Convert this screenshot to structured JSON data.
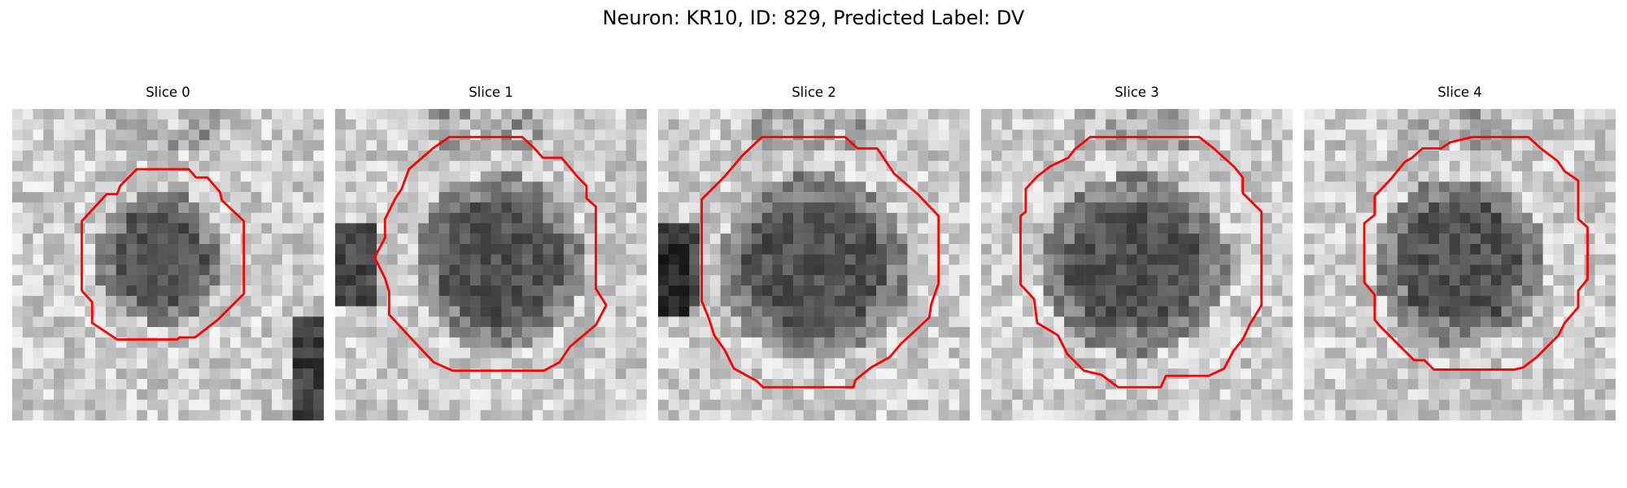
{
  "figure": {
    "title": "Neuron: KR10, ID: 829, Predicted Label: DV",
    "outline_color": "#ff0000",
    "colormap": "gray"
  },
  "slices": [
    {
      "label": "Slice 0"
    },
    {
      "label": "Slice 1"
    },
    {
      "label": "Slice 2"
    },
    {
      "label": "Slice 3"
    },
    {
      "label": "Slice 4"
    }
  ]
}
